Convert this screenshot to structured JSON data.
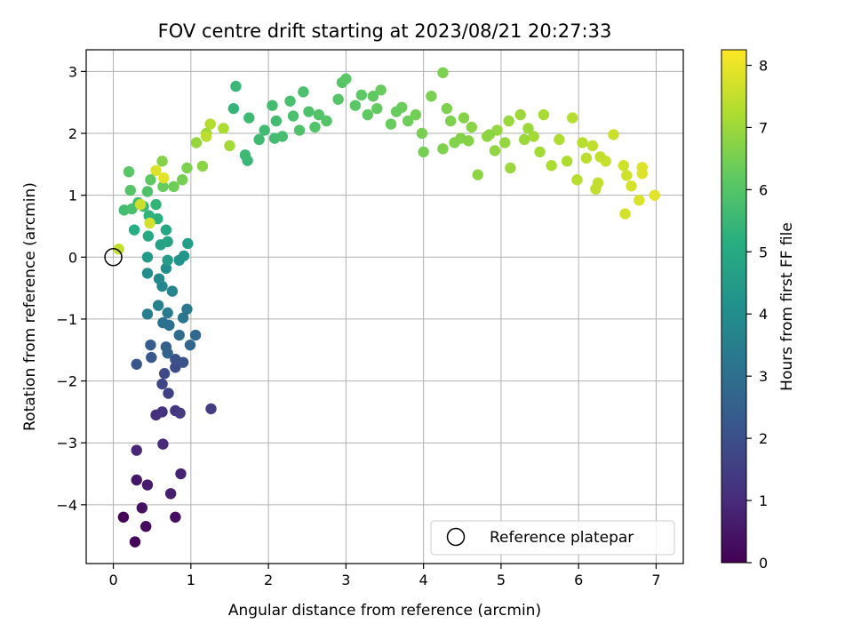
{
  "chart_data": {
    "type": "scatter",
    "title": "FOV centre drift starting at 2023/08/21 20:27:33",
    "xlabel": "Angular distance from reference (arcmin)",
    "ylabel": "Rotation from reference (arcmin)",
    "xlim": [
      -0.35,
      7.35
    ],
    "ylim": [
      -4.95,
      3.35
    ],
    "x_ticks": [
      "0",
      "1",
      "2",
      "3",
      "4",
      "5",
      "6",
      "7"
    ],
    "y_ticks": [
      "−4",
      "−3",
      "−2",
      "−1",
      "0",
      "1",
      "2",
      "3"
    ],
    "grid": true,
    "colorbar": {
      "label": "Hours from first FF file",
      "range": [
        0,
        8.25
      ],
      "ticks": [
        "0",
        "1",
        "2",
        "3",
        "4",
        "5",
        "6",
        "7",
        "8"
      ],
      "colormap": "viridis"
    },
    "reference_point": {
      "x": 0,
      "y": 0
    },
    "legend": {
      "placement": "lower-right",
      "entries": [
        "Reference platepar"
      ]
    },
    "points_columns": [
      "x",
      "y",
      "hours"
    ],
    "points": [
      [
        0.13,
        -4.2,
        0.05
      ],
      [
        0.28,
        -4.6,
        0.1
      ],
      [
        0.42,
        -4.35,
        0.2
      ],
      [
        0.8,
        -4.2,
        0.3
      ],
      [
        0.37,
        -4.05,
        0.4
      ],
      [
        0.3,
        -3.6,
        0.5
      ],
      [
        0.44,
        -3.68,
        0.6
      ],
      [
        0.74,
        -3.82,
        0.7
      ],
      [
        0.87,
        -3.5,
        0.8
      ],
      [
        0.3,
        -3.12,
        0.9
      ],
      [
        0.64,
        -3.02,
        1.0
      ],
      [
        0.55,
        -2.55,
        1.1
      ],
      [
        0.63,
        -2.5,
        1.2
      ],
      [
        0.8,
        -2.48,
        1.3
      ],
      [
        0.86,
        -2.52,
        1.4
      ],
      [
        1.26,
        -2.45,
        1.5
      ],
      [
        0.71,
        -2.2,
        1.6
      ],
      [
        0.63,
        -2.05,
        1.7
      ],
      [
        0.66,
        -1.88,
        1.8
      ],
      [
        0.8,
        -1.78,
        1.9
      ],
      [
        0.8,
        -1.65,
        2.0
      ],
      [
        0.9,
        -1.7,
        2.1
      ],
      [
        0.3,
        -1.73,
        2.2
      ],
      [
        0.49,
        -1.62,
        2.3
      ],
      [
        0.48,
        -1.42,
        2.4
      ],
      [
        0.68,
        -1.45,
        2.5
      ],
      [
        0.7,
        -1.55,
        2.6
      ],
      [
        0.99,
        -1.42,
        2.7
      ],
      [
        1.06,
        -1.26,
        2.8
      ],
      [
        0.85,
        -1.26,
        2.9
      ],
      [
        0.72,
        -1.1,
        3.0
      ],
      [
        0.64,
        -1.06,
        3.1
      ],
      [
        0.9,
        -0.98,
        3.2
      ],
      [
        0.95,
        -0.84,
        3.3
      ],
      [
        0.7,
        -0.9,
        3.4
      ],
      [
        0.44,
        -0.92,
        3.5
      ],
      [
        0.58,
        -0.78,
        3.6
      ],
      [
        0.76,
        -0.55,
        3.7
      ],
      [
        0.63,
        -0.47,
        3.8
      ],
      [
        0.59,
        -0.35,
        3.9
      ],
      [
        0.44,
        -0.26,
        4.0
      ],
      [
        0.68,
        -0.18,
        4.1
      ],
      [
        0.85,
        -0.05,
        4.2
      ],
      [
        0.91,
        0.02,
        4.3
      ],
      [
        0.44,
        0.0,
        4.4
      ],
      [
        0.7,
        -0.05,
        4.5
      ],
      [
        0.96,
        0.22,
        4.6
      ],
      [
        0.61,
        0.2,
        4.7
      ],
      [
        0.7,
        0.25,
        4.8
      ],
      [
        0.68,
        0.44,
        4.9
      ],
      [
        0.45,
        0.34,
        5.0
      ],
      [
        0.27,
        0.44,
        5.1
      ],
      [
        0.57,
        0.62,
        5.2
      ],
      [
        0.46,
        0.67,
        5.3
      ],
      [
        0.55,
        0.85,
        5.4
      ],
      [
        0.39,
        0.82,
        5.5
      ],
      [
        0.32,
        0.88,
        5.6
      ],
      [
        0.14,
        0.76,
        5.7
      ],
      [
        0.24,
        0.78,
        5.8
      ],
      [
        0.44,
        1.06,
        5.9
      ],
      [
        0.22,
        1.08,
        6.0
      ],
      [
        0.2,
        1.38,
        6.1
      ],
      [
        0.48,
        1.25,
        6.2
      ],
      [
        0.64,
        1.14,
        6.3
      ],
      [
        0.78,
        1.14,
        6.4
      ],
      [
        0.89,
        1.25,
        6.5
      ],
      [
        0.95,
        1.44,
        6.6
      ],
      [
        0.63,
        1.55,
        6.7
      ],
      [
        1.15,
        1.47,
        6.8
      ],
      [
        1.07,
        1.85,
        6.9
      ],
      [
        1.2,
        2.0,
        7.0
      ],
      [
        1.5,
        1.8,
        7.1
      ],
      [
        1.42,
        2.08,
        7.2
      ],
      [
        1.25,
        2.15,
        7.3
      ],
      [
        1.2,
        1.95,
        7.4
      ],
      [
        0.07,
        0.13,
        7.5
      ],
      [
        0.35,
        0.85,
        7.6
      ],
      [
        0.47,
        0.55,
        7.7
      ],
      [
        0.55,
        1.4,
        7.8
      ],
      [
        0.65,
        1.28,
        7.9
      ]
    ],
    "points_upper": [
      [
        1.55,
        2.4,
        5.4
      ],
      [
        1.58,
        2.76,
        5.5
      ],
      [
        1.73,
        1.56,
        5.5
      ],
      [
        1.75,
        2.25,
        5.6
      ],
      [
        1.88,
        1.9,
        5.6
      ],
      [
        1.95,
        2.05,
        5.65
      ],
      [
        2.05,
        2.45,
        5.7
      ],
      [
        2.1,
        2.2,
        5.7
      ],
      [
        2.18,
        1.95,
        5.75
      ],
      [
        2.28,
        2.52,
        5.8
      ],
      [
        2.32,
        2.28,
        5.8
      ],
      [
        2.45,
        2.67,
        5.85
      ],
      [
        2.52,
        2.35,
        5.9
      ],
      [
        2.6,
        2.1,
        5.95
      ],
      [
        2.75,
        2.2,
        6.0
      ],
      [
        2.9,
        2.55,
        6.0
      ],
      [
        2.95,
        2.82,
        6.05
      ],
      [
        3.0,
        2.88,
        6.1
      ],
      [
        3.12,
        2.45,
        6.1
      ],
      [
        3.2,
        2.62,
        6.15
      ],
      [
        3.28,
        2.3,
        6.2
      ],
      [
        3.4,
        2.4,
        6.25
      ],
      [
        3.45,
        2.7,
        6.3
      ],
      [
        3.58,
        2.15,
        6.3
      ],
      [
        3.72,
        2.42,
        6.35
      ],
      [
        3.8,
        2.2,
        6.4
      ],
      [
        3.9,
        2.3,
        6.45
      ],
      [
        3.98,
        2.0,
        6.5
      ],
      [
        4.1,
        2.6,
        6.55
      ],
      [
        4.25,
        2.98,
        6.6
      ],
      [
        4.3,
        2.4,
        6.6
      ],
      [
        4.4,
        1.85,
        6.65
      ],
      [
        4.52,
        2.25,
        6.7
      ],
      [
        4.62,
        2.1,
        6.75
      ],
      [
        4.7,
        1.33,
        6.8
      ],
      [
        4.82,
        1.95,
        6.85
      ],
      [
        4.95,
        2.05,
        6.9
      ],
      [
        5.1,
        2.2,
        6.95
      ],
      [
        5.12,
        1.44,
        7.0
      ],
      [
        5.25,
        2.3,
        7.0
      ],
      [
        5.42,
        1.95,
        7.1
      ],
      [
        5.55,
        2.3,
        7.15
      ],
      [
        5.65,
        1.48,
        7.2
      ],
      [
        5.75,
        1.9,
        7.25
      ],
      [
        5.92,
        2.25,
        7.3
      ],
      [
        5.98,
        1.25,
        7.35
      ],
      [
        6.1,
        1.6,
        7.4
      ],
      [
        6.18,
        1.8,
        7.45
      ],
      [
        6.25,
        1.2,
        7.5
      ],
      [
        6.35,
        1.55,
        7.55
      ],
      [
        6.45,
        1.98,
        7.6
      ],
      [
        6.58,
        1.48,
        7.65
      ],
      [
        6.6,
        0.7,
        7.7
      ],
      [
        6.68,
        1.15,
        7.75
      ],
      [
        6.78,
        0.92,
        7.8
      ],
      [
        6.82,
        1.35,
        7.85
      ],
      [
        6.98,
        1.0,
        7.9
      ],
      [
        2.4,
        2.05,
        5.9
      ],
      [
        2.65,
        2.3,
        5.95
      ],
      [
        3.35,
        2.6,
        6.2
      ],
      [
        3.65,
        2.35,
        6.3
      ],
      [
        4.0,
        1.7,
        6.5
      ],
      [
        4.35,
        2.2,
        6.6
      ],
      [
        4.48,
        1.92,
        6.7
      ],
      [
        4.85,
        1.98,
        6.8
      ],
      [
        5.05,
        1.85,
        6.9
      ],
      [
        5.3,
        1.9,
        7.0
      ],
      [
        5.5,
        1.7,
        7.1
      ],
      [
        5.85,
        1.55,
        7.25
      ],
      [
        6.05,
        1.85,
        7.35
      ],
      [
        6.28,
        1.62,
        7.5
      ],
      [
        6.62,
        1.32,
        7.65
      ],
      [
        6.82,
        1.45,
        7.85
      ],
      [
        6.22,
        1.1,
        7.5
      ],
      [
        4.25,
        1.75,
        6.6
      ],
      [
        4.58,
        1.88,
        6.7
      ],
      [
        4.92,
        1.72,
        6.85
      ],
      [
        5.35,
        2.08,
        7.0
      ],
      [
        2.08,
        1.92,
        5.7
      ],
      [
        1.7,
        1.65,
        5.55
      ]
    ]
  }
}
